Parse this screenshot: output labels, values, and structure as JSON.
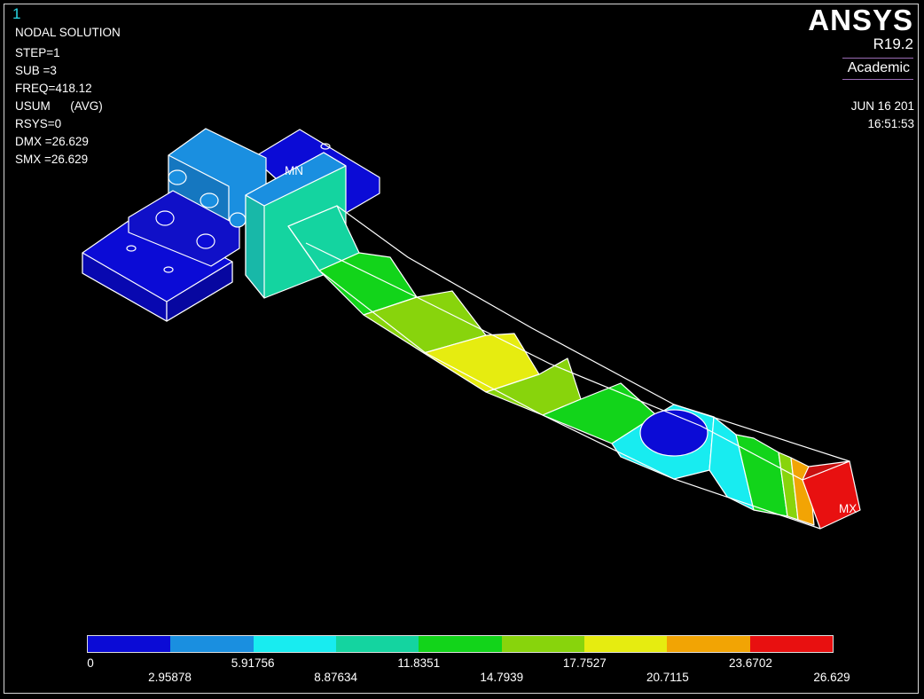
{
  "window": {
    "number": "1"
  },
  "info": {
    "title": "NODAL SOLUTION",
    "lines": [
      "STEP=1",
      "SUB =3",
      "FREQ=418.12",
      "USUM      (AVG)",
      "RSYS=0",
      "DMX =26.629",
      "SMX =26.629"
    ]
  },
  "brand": {
    "logo": "ANSYS",
    "version": "R19.2",
    "edition": "Academic"
  },
  "stamp": {
    "date": "JUN 16 201",
    "time": "16:51:53"
  },
  "markers": {
    "min": "MN",
    "max": "MX"
  },
  "legend": {
    "colors": [
      "#0b0bd6",
      "#1a8fe0",
      "#18ecf0",
      "#14d4a0",
      "#12d41a",
      "#88d40c",
      "#e6ec10",
      "#f2a404",
      "#e81010"
    ],
    "values": [
      "0",
      "2.95878",
      "5.91756",
      "8.87634",
      "11.8351",
      "14.7939",
      "17.7527",
      "20.7115",
      "23.6702",
      "26.629"
    ]
  },
  "colors": {
    "mesh": "#ffffff",
    "frame": "#d8d8d8"
  }
}
